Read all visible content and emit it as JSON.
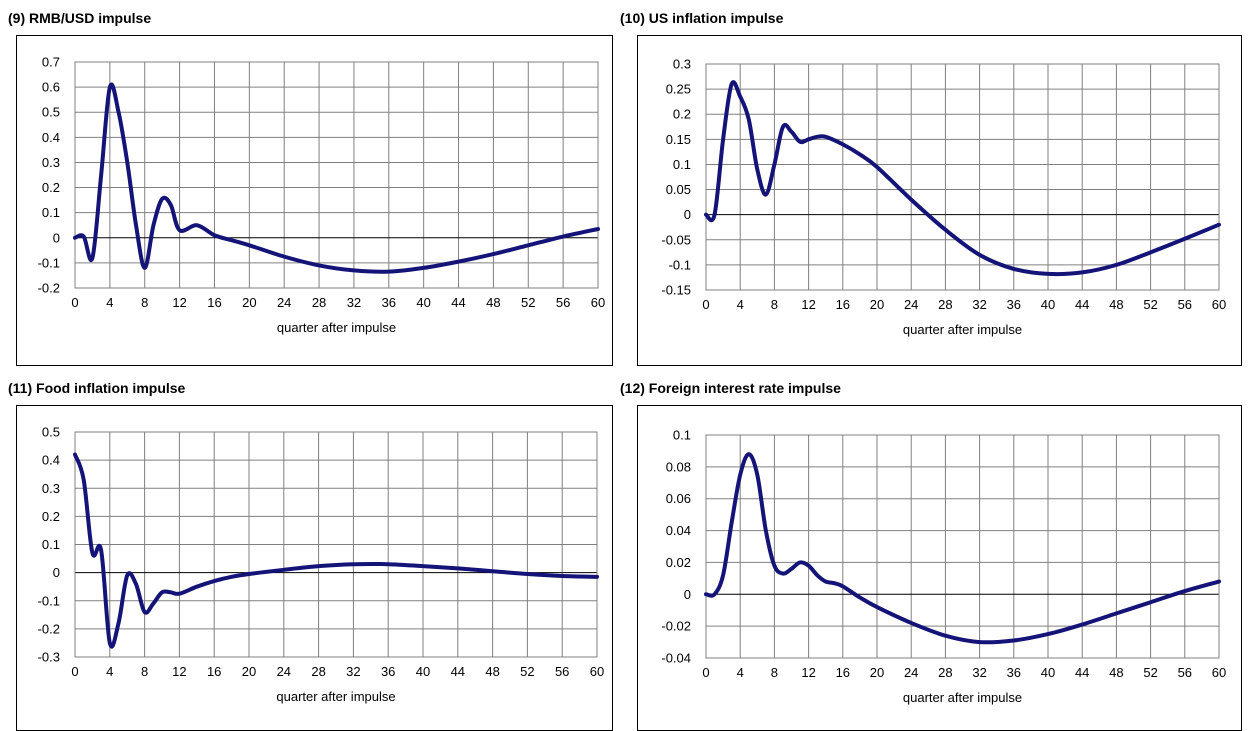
{
  "chart_data": [
    {
      "type": "line",
      "title": "(9) RMB/USD impulse",
      "xlabel": "quarter after impulse",
      "ylabel": "",
      "xlim": [
        0,
        60
      ],
      "ylim": [
        -0.2,
        0.7
      ],
      "xticks": [
        "0",
        "4",
        "8",
        "12",
        "16",
        "20",
        "24",
        "28",
        "32",
        "36",
        "40",
        "44",
        "48",
        "52",
        "56",
        "60"
      ],
      "yticks": [
        "0.7",
        "0.6",
        "0.5",
        "0.4",
        "0.3",
        "0.2",
        "0.1",
        "0",
        "-0.1",
        "-0.2"
      ],
      "grid": true,
      "line_color": "#141478",
      "series": [
        {
          "x": [
            0,
            1,
            2,
            3,
            4,
            5,
            6,
            7,
            8,
            9,
            10,
            11,
            12,
            14,
            16,
            18,
            20,
            24,
            28,
            32,
            36,
            40,
            44,
            48,
            52,
            56,
            60
          ],
          "y": [
            0,
            0.005,
            -0.08,
            0.25,
            0.6,
            0.5,
            0.3,
            0.05,
            -0.12,
            0.05,
            0.155,
            0.13,
            0.03,
            0.05,
            0.01,
            -0.01,
            -0.03,
            -0.075,
            -0.11,
            -0.13,
            -0.135,
            -0.12,
            -0.095,
            -0.065,
            -0.03,
            0.005,
            0.035
          ]
        }
      ]
    },
    {
      "type": "line",
      "title": "(10) US inflation impulse",
      "xlabel": "quarter after impulse",
      "ylabel": "",
      "xlim": [
        0,
        60
      ],
      "ylim": [
        -0.15,
        0.3
      ],
      "xticks": [
        "0",
        "4",
        "8",
        "12",
        "16",
        "20",
        "24",
        "28",
        "32",
        "36",
        "40",
        "44",
        "48",
        "52",
        "56",
        "60"
      ],
      "yticks": [
        "0.3",
        "0.25",
        "0.2",
        "0.15",
        "0.1",
        "0.05",
        "0",
        "-0.05",
        "-0.1",
        "-0.15"
      ],
      "grid": true,
      "line_color": "#141478",
      "series": [
        {
          "x": [
            0,
            1,
            2,
            3,
            4,
            5,
            6,
            7,
            8,
            9,
            10,
            11,
            12,
            13,
            14,
            16,
            18,
            20,
            24,
            28,
            32,
            36,
            40,
            44,
            48,
            52,
            56,
            60
          ],
          "y": [
            0,
            0,
            0.15,
            0.26,
            0.235,
            0.19,
            0.09,
            0.04,
            0.1,
            0.175,
            0.165,
            0.145,
            0.15,
            0.155,
            0.155,
            0.14,
            0.12,
            0.095,
            0.03,
            -0.03,
            -0.08,
            -0.108,
            -0.118,
            -0.115,
            -0.1,
            -0.075,
            -0.048,
            -0.02
          ]
        }
      ]
    },
    {
      "type": "line",
      "title": "(11) Food inflation impulse",
      "xlabel": "quarter after impulse",
      "ylabel": "",
      "xlim": [
        0,
        60
      ],
      "ylim": [
        -0.3,
        0.5
      ],
      "xticks": [
        "0",
        "4",
        "8",
        "12",
        "16",
        "20",
        "24",
        "28",
        "32",
        "36",
        "40",
        "44",
        "48",
        "52",
        "56",
        "60"
      ],
      "yticks": [
        "0.5",
        "0.4",
        "0.3",
        "0.2",
        "0.1",
        "0",
        "-0.1",
        "-0.2",
        "-0.3"
      ],
      "grid": true,
      "line_color": "#141478",
      "series": [
        {
          "x": [
            0,
            1,
            2,
            3,
            4,
            5,
            6,
            7,
            8,
            9,
            10,
            11,
            12,
            14,
            16,
            18,
            20,
            24,
            28,
            32,
            36,
            40,
            44,
            48,
            52,
            56,
            60
          ],
          "y": [
            0.42,
            0.33,
            0.07,
            0.08,
            -0.25,
            -0.18,
            -0.01,
            -0.04,
            -0.14,
            -0.11,
            -0.07,
            -0.07,
            -0.075,
            -0.05,
            -0.03,
            -0.015,
            -0.005,
            0.01,
            0.023,
            0.03,
            0.03,
            0.023,
            0.015,
            0.005,
            -0.005,
            -0.012,
            -0.015
          ]
        }
      ]
    },
    {
      "type": "line",
      "title": "(12) Foreign interest rate impulse",
      "xlabel": "quarter after impulse",
      "ylabel": "",
      "xlim": [
        0,
        60
      ],
      "ylim": [
        -0.04,
        0.1
      ],
      "xticks": [
        "0",
        "4",
        "8",
        "12",
        "16",
        "20",
        "24",
        "28",
        "32",
        "36",
        "40",
        "44",
        "48",
        "52",
        "56",
        "60"
      ],
      "yticks": [
        "0.1",
        "0.08",
        "0.06",
        "0.04",
        "0.02",
        "0",
        "-0.02",
        "-0.04"
      ],
      "grid": true,
      "line_color": "#141478",
      "series": [
        {
          "x": [
            0,
            1,
            2,
            3,
            4,
            5,
            6,
            7,
            8,
            9,
            10,
            11,
            12,
            13,
            14,
            15,
            16,
            18,
            20,
            24,
            28,
            32,
            36,
            40,
            44,
            48,
            52,
            56,
            60
          ],
          "y": [
            0,
            0,
            0.012,
            0.045,
            0.075,
            0.088,
            0.075,
            0.04,
            0.018,
            0.013,
            0.016,
            0.02,
            0.018,
            0.012,
            0.008,
            0.007,
            0.005,
            -0.002,
            -0.008,
            -0.018,
            -0.026,
            -0.03,
            -0.029,
            -0.025,
            -0.019,
            -0.012,
            -0.005,
            0.002,
            0.008
          ]
        }
      ]
    }
  ]
}
